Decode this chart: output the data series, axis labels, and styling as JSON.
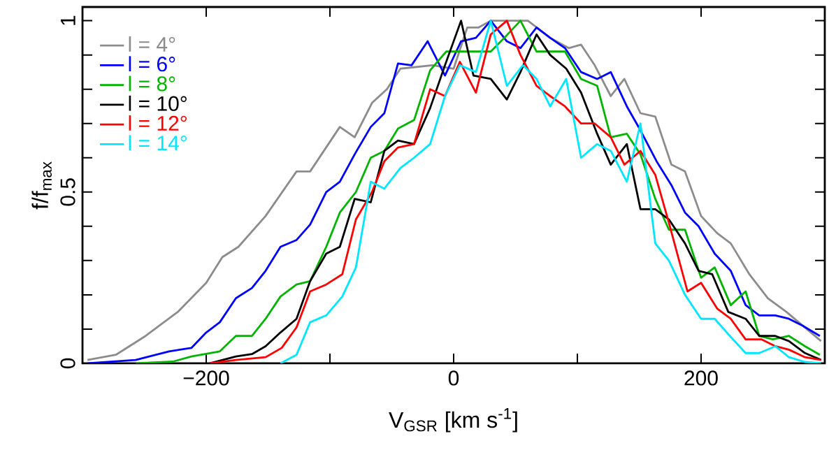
{
  "chart_data": {
    "type": "line",
    "xlabel": "V$_{GSR}$ [km s$^{-1}$]",
    "ylabel": "f/f$_{max}$",
    "xlim": [
      -300,
      300
    ],
    "ylim": [
      0,
      1.04
    ],
    "xticks": [
      {
        "value": -200,
        "label": "−200"
      },
      {
        "value": -100,
        "label": null
      },
      0,
      {
        "value": 100,
        "label": null
      },
      200
    ],
    "yticks": [
      0,
      {
        "value": 0.1,
        "label": null
      },
      {
        "value": 0.2,
        "label": null
      },
      {
        "value": 0.3,
        "label": null
      },
      {
        "value": 0.4,
        "label": null
      },
      0.5,
      {
        "value": 0.6,
        "label": null
      },
      {
        "value": 0.7,
        "label": null
      },
      {
        "value": 0.8,
        "label": null
      },
      {
        "value": 0.9,
        "label": null
      },
      1
    ],
    "grid": false,
    "legend": "top left",
    "marker": "none",
    "line_style": "solid",
    "series": [
      {
        "name": "l = 4°",
        "color": "#8c8c8c",
        "x": [
          -296,
          -273,
          -249,
          -223,
          -200,
          -187,
          -174,
          -152,
          -127,
          -116,
          -92,
          -80,
          -66,
          -54,
          -43,
          -17,
          0,
          11,
          20,
          30,
          60,
          78,
          93,
          103,
          114,
          127,
          138,
          151,
          163,
          176,
          187,
          200,
          213,
          224,
          239,
          254,
          269,
          297
        ],
        "values": [
          0.01,
          0.025,
          0.08,
          0.15,
          0.235,
          0.31,
          0.34,
          0.43,
          0.56,
          0.56,
          0.69,
          0.66,
          0.76,
          0.8,
          0.86,
          0.87,
          0.86,
          0.98,
          0.98,
          1.0,
          1.0,
          0.95,
          0.92,
          0.93,
          0.87,
          0.78,
          0.83,
          0.73,
          0.72,
          0.58,
          0.56,
          0.43,
          0.38,
          0.35,
          0.26,
          0.19,
          0.15,
          0.065
        ]
      },
      {
        "name": "l = 6°",
        "color": "#0000ff",
        "x": [
          -296,
          -257,
          -230,
          -212,
          -200,
          -189,
          -176,
          -163,
          -152,
          -140,
          -127,
          -116,
          -103,
          -92,
          -80,
          -67,
          -56,
          -45,
          -34,
          -21,
          -7,
          6,
          18,
          30,
          43,
          54,
          67,
          78,
          90,
          103,
          116,
          127,
          140,
          151,
          164,
          176,
          187,
          198,
          211,
          224,
          236,
          247,
          260,
          271,
          282,
          296
        ],
        "values": [
          0,
          0.01,
          0.035,
          0.045,
          0.09,
          0.12,
          0.19,
          0.22,
          0.27,
          0.34,
          0.36,
          0.405,
          0.5,
          0.53,
          0.61,
          0.69,
          0.73,
          0.875,
          0.87,
          0.94,
          0.84,
          0.94,
          0.95,
          1.0,
          0.94,
          0.92,
          0.98,
          0.95,
          0.92,
          0.85,
          0.83,
          0.85,
          0.75,
          0.68,
          0.59,
          0.52,
          0.44,
          0.4,
          0.32,
          0.27,
          0.17,
          0.14,
          0.14,
          0.13,
          0.11,
          0.08
        ]
      },
      {
        "name": "l = 8°",
        "color": "#00b400",
        "x": [
          -257,
          -227,
          -212,
          -189,
          -176,
          -163,
          -152,
          -140,
          -127,
          -116,
          -103,
          -92,
          -79,
          -67,
          -56,
          -45,
          -32,
          -19,
          -6,
          11,
          30,
          41,
          54,
          67,
          90,
          103,
          116,
          127,
          140,
          151,
          163,
          174,
          187,
          200,
          211,
          224,
          236,
          247,
          258,
          271,
          284,
          296
        ],
        "values": [
          0,
          0.005,
          0.02,
          0.035,
          0.08,
          0.08,
          0.13,
          0.195,
          0.23,
          0.24,
          0.34,
          0.44,
          0.5,
          0.6,
          0.62,
          0.685,
          0.71,
          0.855,
          0.91,
          0.91,
          0.91,
          0.95,
          1.0,
          0.91,
          0.91,
          0.83,
          0.81,
          0.66,
          0.67,
          0.61,
          0.48,
          0.39,
          0.39,
          0.25,
          0.28,
          0.17,
          0.21,
          0.08,
          0.07,
          0.08,
          0.05,
          0.025
        ]
      },
      {
        "name": "l = 10°",
        "color": "#000000",
        "x": [
          -197,
          -176,
          -163,
          -152,
          -140,
          -127,
          -116,
          -103,
          -92,
          -80,
          -67,
          -56,
          -45,
          -32,
          -19,
          -7,
          6,
          16,
          30,
          43,
          54,
          67,
          78,
          91,
          103,
          116,
          127,
          140,
          151,
          163,
          174,
          187,
          198,
          209,
          222,
          236,
          247,
          260,
          271,
          284,
          297
        ],
        "values": [
          0,
          0.02,
          0.027,
          0.05,
          0.09,
          0.13,
          0.24,
          0.32,
          0.34,
          0.48,
          0.47,
          0.62,
          0.65,
          0.64,
          0.745,
          0.87,
          1.0,
          0.84,
          0.83,
          0.77,
          0.85,
          0.96,
          0.9,
          0.86,
          0.79,
          0.67,
          0.58,
          0.64,
          0.45,
          0.45,
          0.42,
          0.35,
          0.27,
          0.26,
          0.15,
          0.13,
          0.08,
          0.08,
          0.065,
          0.03,
          0.01
        ]
      },
      {
        "name": "l = 12°",
        "color": "#ff0000",
        "x": [
          -197,
          -176,
          -152,
          -139,
          -127,
          -116,
          -103,
          -90,
          -79,
          -66,
          -56,
          -45,
          -32,
          -19,
          -7,
          5,
          18,
          30,
          43,
          54,
          67,
          78,
          90,
          103,
          114,
          127,
          138,
          151,
          163,
          174,
          189,
          200,
          213,
          224,
          236,
          249,
          260,
          271,
          284,
          297
        ],
        "values": [
          0,
          0.01,
          0.018,
          0.045,
          0.105,
          0.21,
          0.23,
          0.26,
          0.42,
          0.5,
          0.59,
          0.63,
          0.64,
          0.8,
          0.78,
          0.88,
          0.79,
          0.96,
          1.0,
          0.9,
          0.81,
          0.78,
          0.75,
          0.7,
          0.7,
          0.66,
          0.58,
          0.62,
          0.55,
          0.41,
          0.21,
          0.235,
          0.16,
          0.13,
          0.07,
          0.07,
          0.05,
          0.04,
          0.018,
          0.01
        ]
      },
      {
        "name": "l = 14°",
        "color": "#00e6ff",
        "x": [
          -140,
          -127,
          -116,
          -103,
          -90,
          -79,
          -67,
          -56,
          -43,
          -32,
          -19,
          -7,
          5,
          18,
          30,
          43,
          56,
          67,
          78,
          91,
          103,
          116,
          127,
          140,
          151,
          163,
          174,
          187,
          200,
          211,
          222,
          236,
          247,
          260,
          271,
          284,
          297
        ],
        "values": [
          0,
          0.025,
          0.12,
          0.14,
          0.195,
          0.28,
          0.53,
          0.51,
          0.57,
          0.6,
          0.64,
          0.78,
          0.87,
          0.85,
          1.0,
          0.81,
          0.87,
          0.83,
          0.75,
          0.83,
          0.6,
          0.64,
          0.62,
          0.53,
          0.7,
          0.35,
          0.3,
          0.2,
          0.13,
          0.13,
          0.085,
          0.03,
          0.03,
          0.05,
          0.018,
          0.004,
          0
        ]
      }
    ]
  }
}
